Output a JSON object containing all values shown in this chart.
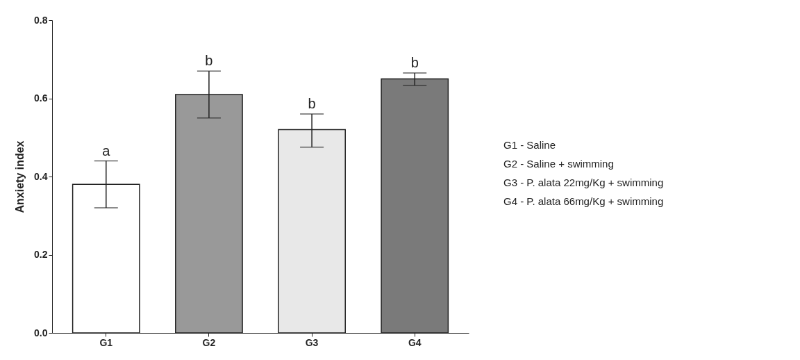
{
  "chart_data": {
    "type": "bar",
    "ylabel": "Anxiety index",
    "categories": [
      "G1",
      "G2",
      "G3",
      "G4"
    ],
    "values": [
      0.38,
      0.61,
      0.52,
      0.65
    ],
    "colors": [
      "#ffffff",
      "#999999",
      "#e8e8e8",
      "#7a7a7a"
    ],
    "errors": [
      [
        0.32,
        0.44
      ],
      [
        0.55,
        0.67
      ],
      [
        0.475,
        0.56
      ],
      [
        0.633,
        0.665
      ]
    ],
    "ylim": [
      0,
      0.8
    ],
    "yticks": [
      {
        "value": 0,
        "label": "0.0"
      },
      0.2,
      0.4,
      0.6,
      0.8
    ],
    "grid": false,
    "legend": false,
    "annotations": [
      {
        "text": "a",
        "x": "G1",
        "y": 0.44
      },
      {
        "text": "b",
        "x": "G2",
        "y": 0.67
      },
      {
        "text": "b",
        "x": "G3",
        "y": 0.56
      },
      {
        "text": "b",
        "x": "G4",
        "y": 0.665
      },
      "G1 - Saline",
      "G2 - Saline + swimming",
      "G3 - P. alata 22mg/Kg + swimming",
      "G4 - P. alata 66mg/Kg + swimming"
    ]
  }
}
